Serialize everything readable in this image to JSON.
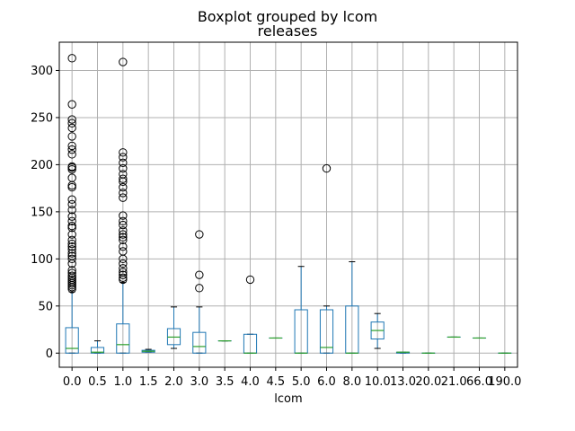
{
  "chart_data": {
    "type": "box",
    "title": "Boxplot grouped by lcom",
    "subtitle": "releases",
    "xlabel": "lcom",
    "ylabel": "",
    "ylim": [
      -15,
      330
    ],
    "yticks": [
      0,
      50,
      100,
      150,
      200,
      250,
      300
    ],
    "grid": true,
    "colors": {
      "box": "#1f77b4",
      "median": "#2ca02c",
      "whisker": "#1f77b4",
      "outlier": "#000000",
      "grid": "#b0b0b0"
    },
    "categories": [
      "0.0",
      "0.5",
      "1.0",
      "1.5",
      "2.0",
      "3.0",
      "3.5",
      "4.0",
      "4.5",
      "5.0",
      "6.0",
      "8.0",
      "10.0",
      "13.0",
      "20.0",
      "21.0",
      "66.0",
      "190.0"
    ],
    "boxes": [
      {
        "category": "0.0",
        "whisker_low": 0,
        "q1": 0,
        "median": 5,
        "q3": 27,
        "whisker_high": 65,
        "outliers": [
          68,
          70,
          72,
          74,
          76,
          78,
          80,
          82,
          85,
          88,
          95,
          100,
          103,
          106,
          110,
          113,
          116,
          120,
          126,
          133,
          135,
          140,
          145,
          152,
          158,
          163,
          176,
          178,
          186,
          195,
          197,
          198,
          211,
          216,
          220,
          230,
          239,
          244,
          248,
          264,
          313
        ]
      },
      {
        "category": "0.5",
        "whisker_low": 0,
        "q1": 0,
        "median": 1,
        "q3": 6,
        "whisker_high": 13,
        "outliers": []
      },
      {
        "category": "1.0",
        "whisker_low": 0,
        "q1": 0,
        "median": 9,
        "q3": 31,
        "whisker_high": 75,
        "outliers": [
          78,
          80,
          83,
          86,
          90,
          95,
          100,
          108,
          113,
          120,
          123,
          126,
          130,
          136,
          140,
          146,
          165,
          170,
          176,
          182,
          185,
          190,
          196,
          202,
          208,
          213,
          309
        ]
      },
      {
        "category": "1.5",
        "whisker_low": 1,
        "q1": 1,
        "median": 2,
        "q3": 3,
        "whisker_high": 4,
        "outliers": []
      },
      {
        "category": "2.0",
        "whisker_low": 5,
        "q1": 9,
        "median": 17,
        "q3": 26,
        "whisker_high": 49,
        "outliers": []
      },
      {
        "category": "3.0",
        "whisker_low": 0,
        "q1": 0,
        "median": 7,
        "q3": 22,
        "whisker_high": 49,
        "outliers": [
          69,
          83,
          126
        ]
      },
      {
        "category": "3.5",
        "whisker_low": 13,
        "q1": 13,
        "median": 13,
        "q3": 13,
        "whisker_high": 13,
        "outliers": []
      },
      {
        "category": "4.0",
        "whisker_low": 0,
        "q1": 0,
        "median": 0,
        "q3": 20,
        "whisker_high": 20,
        "outliers": [
          78
        ]
      },
      {
        "category": "4.5",
        "whisker_low": 16,
        "q1": 16,
        "median": 16,
        "q3": 16,
        "whisker_high": 16,
        "outliers": []
      },
      {
        "category": "5.0",
        "whisker_low": 0,
        "q1": 0,
        "median": 0,
        "q3": 46,
        "whisker_high": 92,
        "outliers": []
      },
      {
        "category": "6.0",
        "whisker_low": 0,
        "q1": 0,
        "median": 6,
        "q3": 46,
        "whisker_high": 50,
        "outliers": [
          196
        ]
      },
      {
        "category": "8.0",
        "whisker_low": 0,
        "q1": 0,
        "median": 0,
        "q3": 50,
        "whisker_high": 97,
        "outliers": []
      },
      {
        "category": "10.0",
        "whisker_low": 5,
        "q1": 15,
        "median": 24,
        "q3": 33,
        "whisker_high": 42,
        "outliers": []
      },
      {
        "category": "13.0",
        "whisker_low": 0,
        "q1": 0,
        "median": 1,
        "q3": 1,
        "whisker_high": 1,
        "outliers": []
      },
      {
        "category": "20.0",
        "whisker_low": 0,
        "q1": 0,
        "median": 0,
        "q3": 0,
        "whisker_high": 0,
        "outliers": []
      },
      {
        "category": "21.0",
        "whisker_low": 17,
        "q1": 17,
        "median": 17,
        "q3": 17,
        "whisker_high": 17,
        "outliers": []
      },
      {
        "category": "66.0",
        "whisker_low": 16,
        "q1": 16,
        "median": 16,
        "q3": 16,
        "whisker_high": 16,
        "outliers": []
      },
      {
        "category": "190.0",
        "whisker_low": 0,
        "q1": 0,
        "median": 0,
        "q3": 0,
        "whisker_high": 0,
        "outliers": []
      }
    ]
  }
}
